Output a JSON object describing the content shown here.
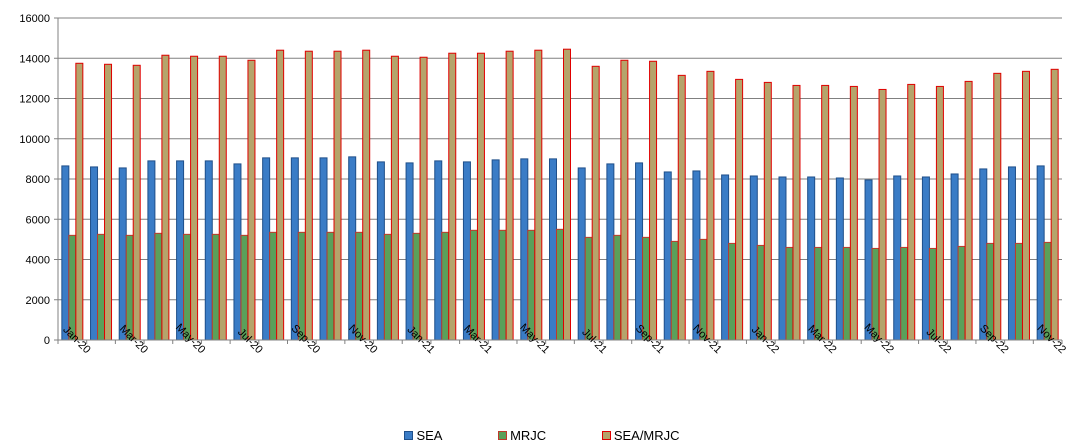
{
  "chart_data": {
    "type": "bar",
    "ylim": [
      0,
      16000
    ],
    "yticks": [
      0,
      2000,
      4000,
      6000,
      8000,
      10000,
      12000,
      14000,
      16000
    ],
    "grid": true,
    "legend_position": "bottom",
    "categories": [
      "Jan-20",
      "Feb-20",
      "Mar-20",
      "Apr-20",
      "May-20",
      "Jun-20",
      "Jul-20",
      "Aug-20",
      "Sep-20",
      "Oct-20",
      "Nov-20",
      "Dec-20",
      "Jan-21",
      "Feb-21",
      "Mar-21",
      "Apr-21",
      "May-21",
      "Jun-21",
      "Jul-21",
      "Aug-21",
      "Sep-21",
      "Oct-21",
      "Nov-21",
      "Dec-21",
      "Jan-22",
      "Feb-22",
      "Mar-22",
      "Apr-22",
      "May-22",
      "Jun-22",
      "Jul-22",
      "Aug-22",
      "Sep-22",
      "Oct-22",
      "Nov-22"
    ],
    "tick_labels": [
      "Jan-20",
      "Mar-20",
      "May-20",
      "Jul-20",
      "Sep-20",
      "Nov-20",
      "Jan-21",
      "Mar-21",
      "May-21",
      "Jul-21",
      "Sep-21",
      "Nov-21",
      "Jan-22",
      "Mar-22",
      "May-22",
      "Jul-22",
      "Sep-22",
      "Nov-22"
    ],
    "series": [
      {
        "name": "SEA",
        "color": "#3a7cc6",
        "edge": "#1f4f8a",
        "values": [
          8650,
          8600,
          8550,
          8900,
          8900,
          8900,
          8750,
          9050,
          9050,
          9050,
          9100,
          8850,
          8800,
          8900,
          8850,
          8950,
          9000,
          9000,
          8550,
          8750,
          8800,
          8350,
          8400,
          8200,
          8150,
          8100,
          8100,
          8050,
          7950,
          8150,
          8100,
          8250,
          8500,
          8600,
          8650
        ]
      },
      {
        "name": "MRJC",
        "color": "#5aa05a",
        "edge": "#c0392b",
        "values": [
          5200,
          5250,
          5200,
          5300,
          5250,
          5250,
          5200,
          5350,
          5350,
          5350,
          5350,
          5250,
          5300,
          5350,
          5450,
          5450,
          5450,
          5500,
          5100,
          5200,
          5100,
          4900,
          5000,
          4800,
          4700,
          4600,
          4600,
          4600,
          4550,
          4600,
          4550,
          4650,
          4800,
          4800,
          4850
        ]
      },
      {
        "name": "SEA/MRJC",
        "color": "#b5a46b",
        "edge": "#e00000",
        "values": [
          13750,
          13700,
          13650,
          14150,
          14100,
          14100,
          13900,
          14400,
          14350,
          14350,
          14400,
          14100,
          14050,
          14250,
          14250,
          14350,
          14400,
          14450,
          13600,
          13900,
          13850,
          13150,
          13350,
          12950,
          12800,
          12650,
          12650,
          12600,
          12450,
          12700,
          12600,
          12850,
          13250,
          13350,
          13450
        ]
      }
    ]
  }
}
